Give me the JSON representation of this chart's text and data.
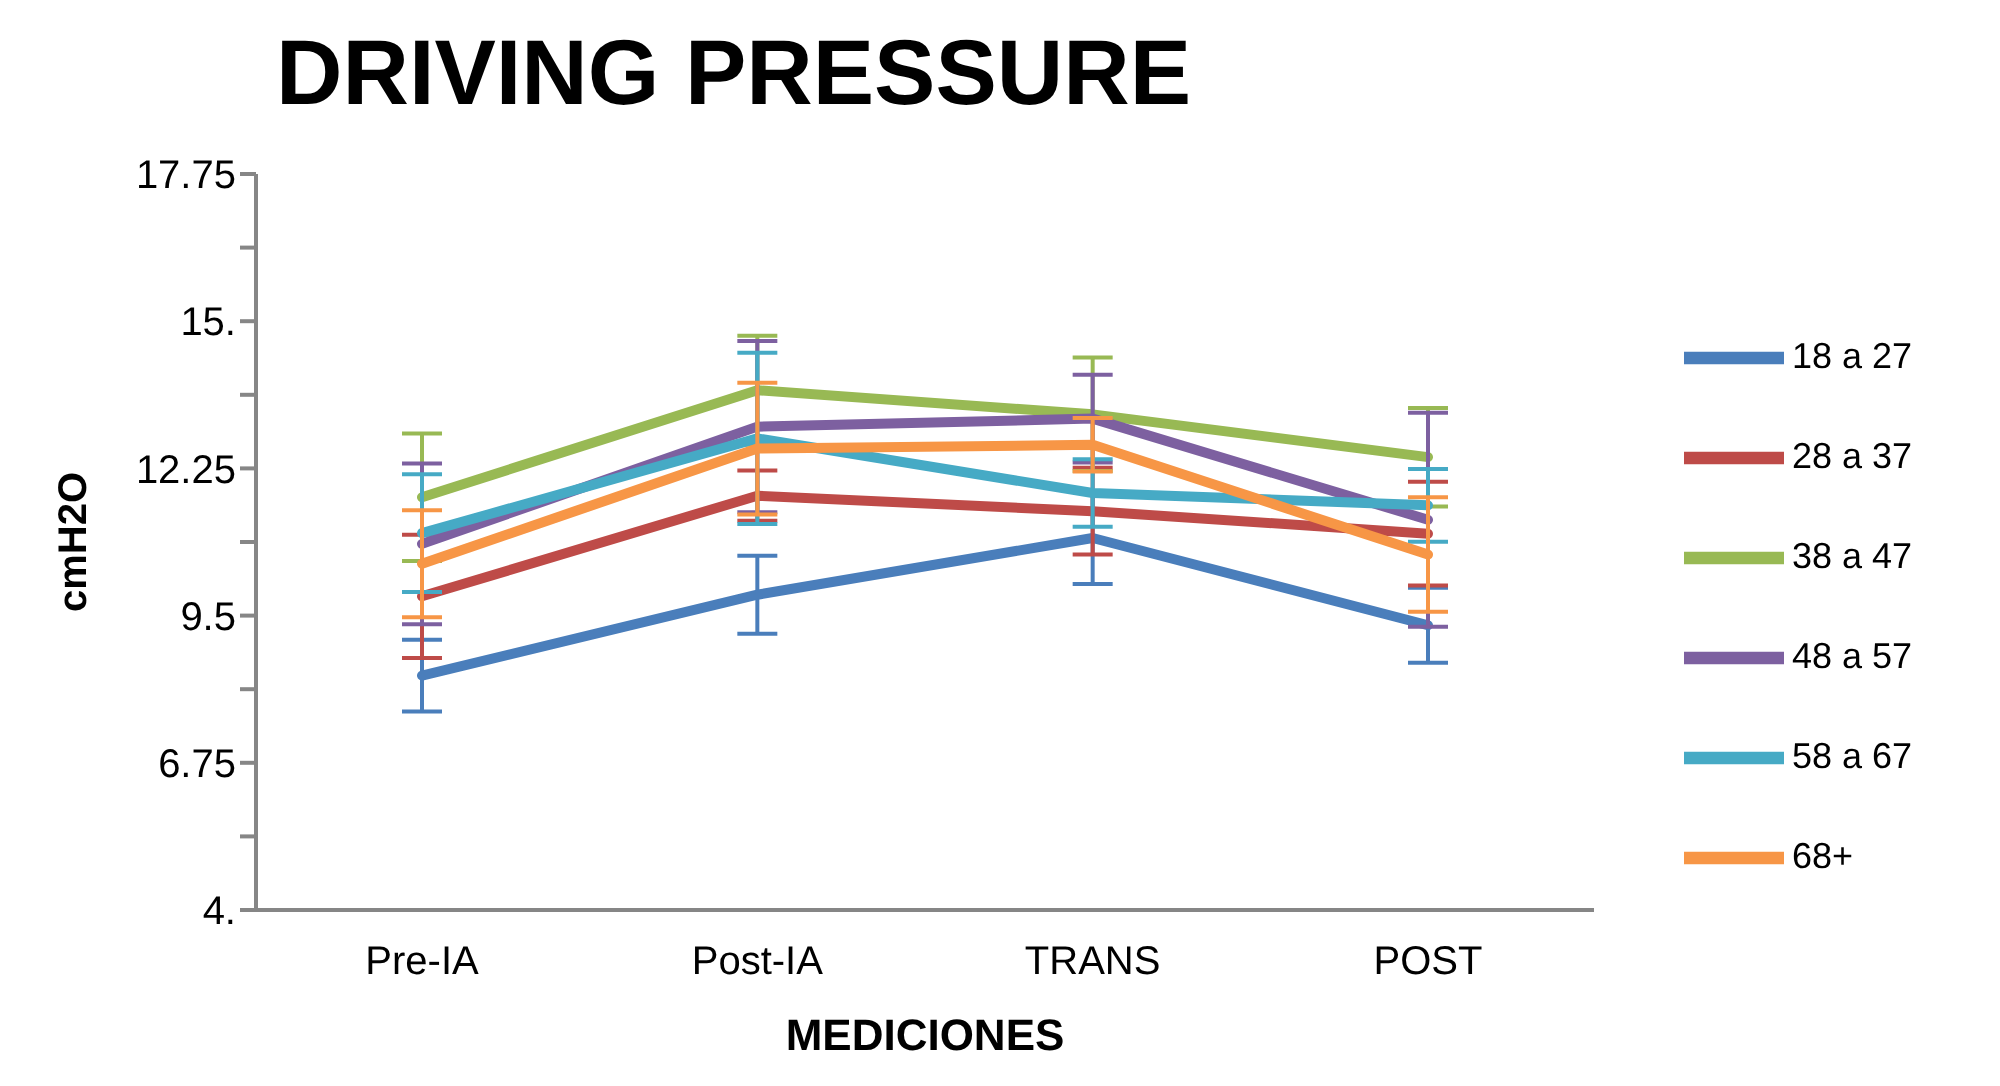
{
  "chart_data": {
    "type": "line",
    "title": "DRIVING PRESSURE",
    "xlabel": "MEDICIONES",
    "ylabel": "cmH2O",
    "categories": [
      "Pre-IA",
      "Post-IA",
      "TRANS",
      "POST"
    ],
    "ylim": [
      4,
      17.75
    ],
    "yticks": [
      {
        "value": 4,
        "label": "4."
      },
      {
        "value": 5.375,
        "label": null
      },
      {
        "value": 6.75,
        "label": "6.75"
      },
      {
        "value": 8.125,
        "label": null
      },
      {
        "value": 9.5,
        "label": "9.5"
      },
      {
        "value": 10.875,
        "label": null
      },
      {
        "value": 12.25,
        "label": "12.25"
      },
      {
        "value": 13.625,
        "label": null
      },
      {
        "value": 15,
        "label": "15."
      },
      {
        "value": 16.375,
        "label": null
      },
      {
        "value": 17.75,
        "label": "17.75"
      }
    ],
    "grid": false,
    "legend": "right",
    "marker": "none",
    "line_style": "solid",
    "series": [
      {
        "name": "18 a 27",
        "color": "#4a7ebb",
        "values": [
          8.38,
          9.89,
          10.95,
          9.32
        ],
        "errors": [
          0.67,
          0.73,
          0.86,
          0.7
        ]
      },
      {
        "name": "28  a 37",
        "color": "#be4b48",
        "values": [
          9.86,
          11.74,
          11.45,
          11.03
        ],
        "errors": [
          1.15,
          0.47,
          0.81,
          0.97
        ]
      },
      {
        "name": "38 a 47",
        "color": "#98b954",
        "values": [
          11.71,
          13.71,
          13.26,
          12.46
        ],
        "errors": [
          1.19,
          1.02,
          1.06,
          0.92
        ]
      },
      {
        "name": "48 a 57",
        "color": "#7d60a0",
        "values": [
          10.84,
          13.03,
          13.18,
          11.29
        ],
        "errors": [
          1.5,
          1.6,
          0.82,
          2
        ]
      },
      {
        "name": "58 a 67",
        "color": "#46aac5",
        "values": [
          11.04,
          12.81,
          11.79,
          11.56
        ],
        "errors": [
          1.1,
          1.6,
          0.63,
          0.68
        ]
      },
      {
        "name": "68+",
        "color": "#f79646",
        "values": [
          10.47,
          12.62,
          12.69,
          10.64
        ],
        "errors": [
          1.0,
          1.23,
          0.5,
          1.07
        ]
      }
    ]
  }
}
